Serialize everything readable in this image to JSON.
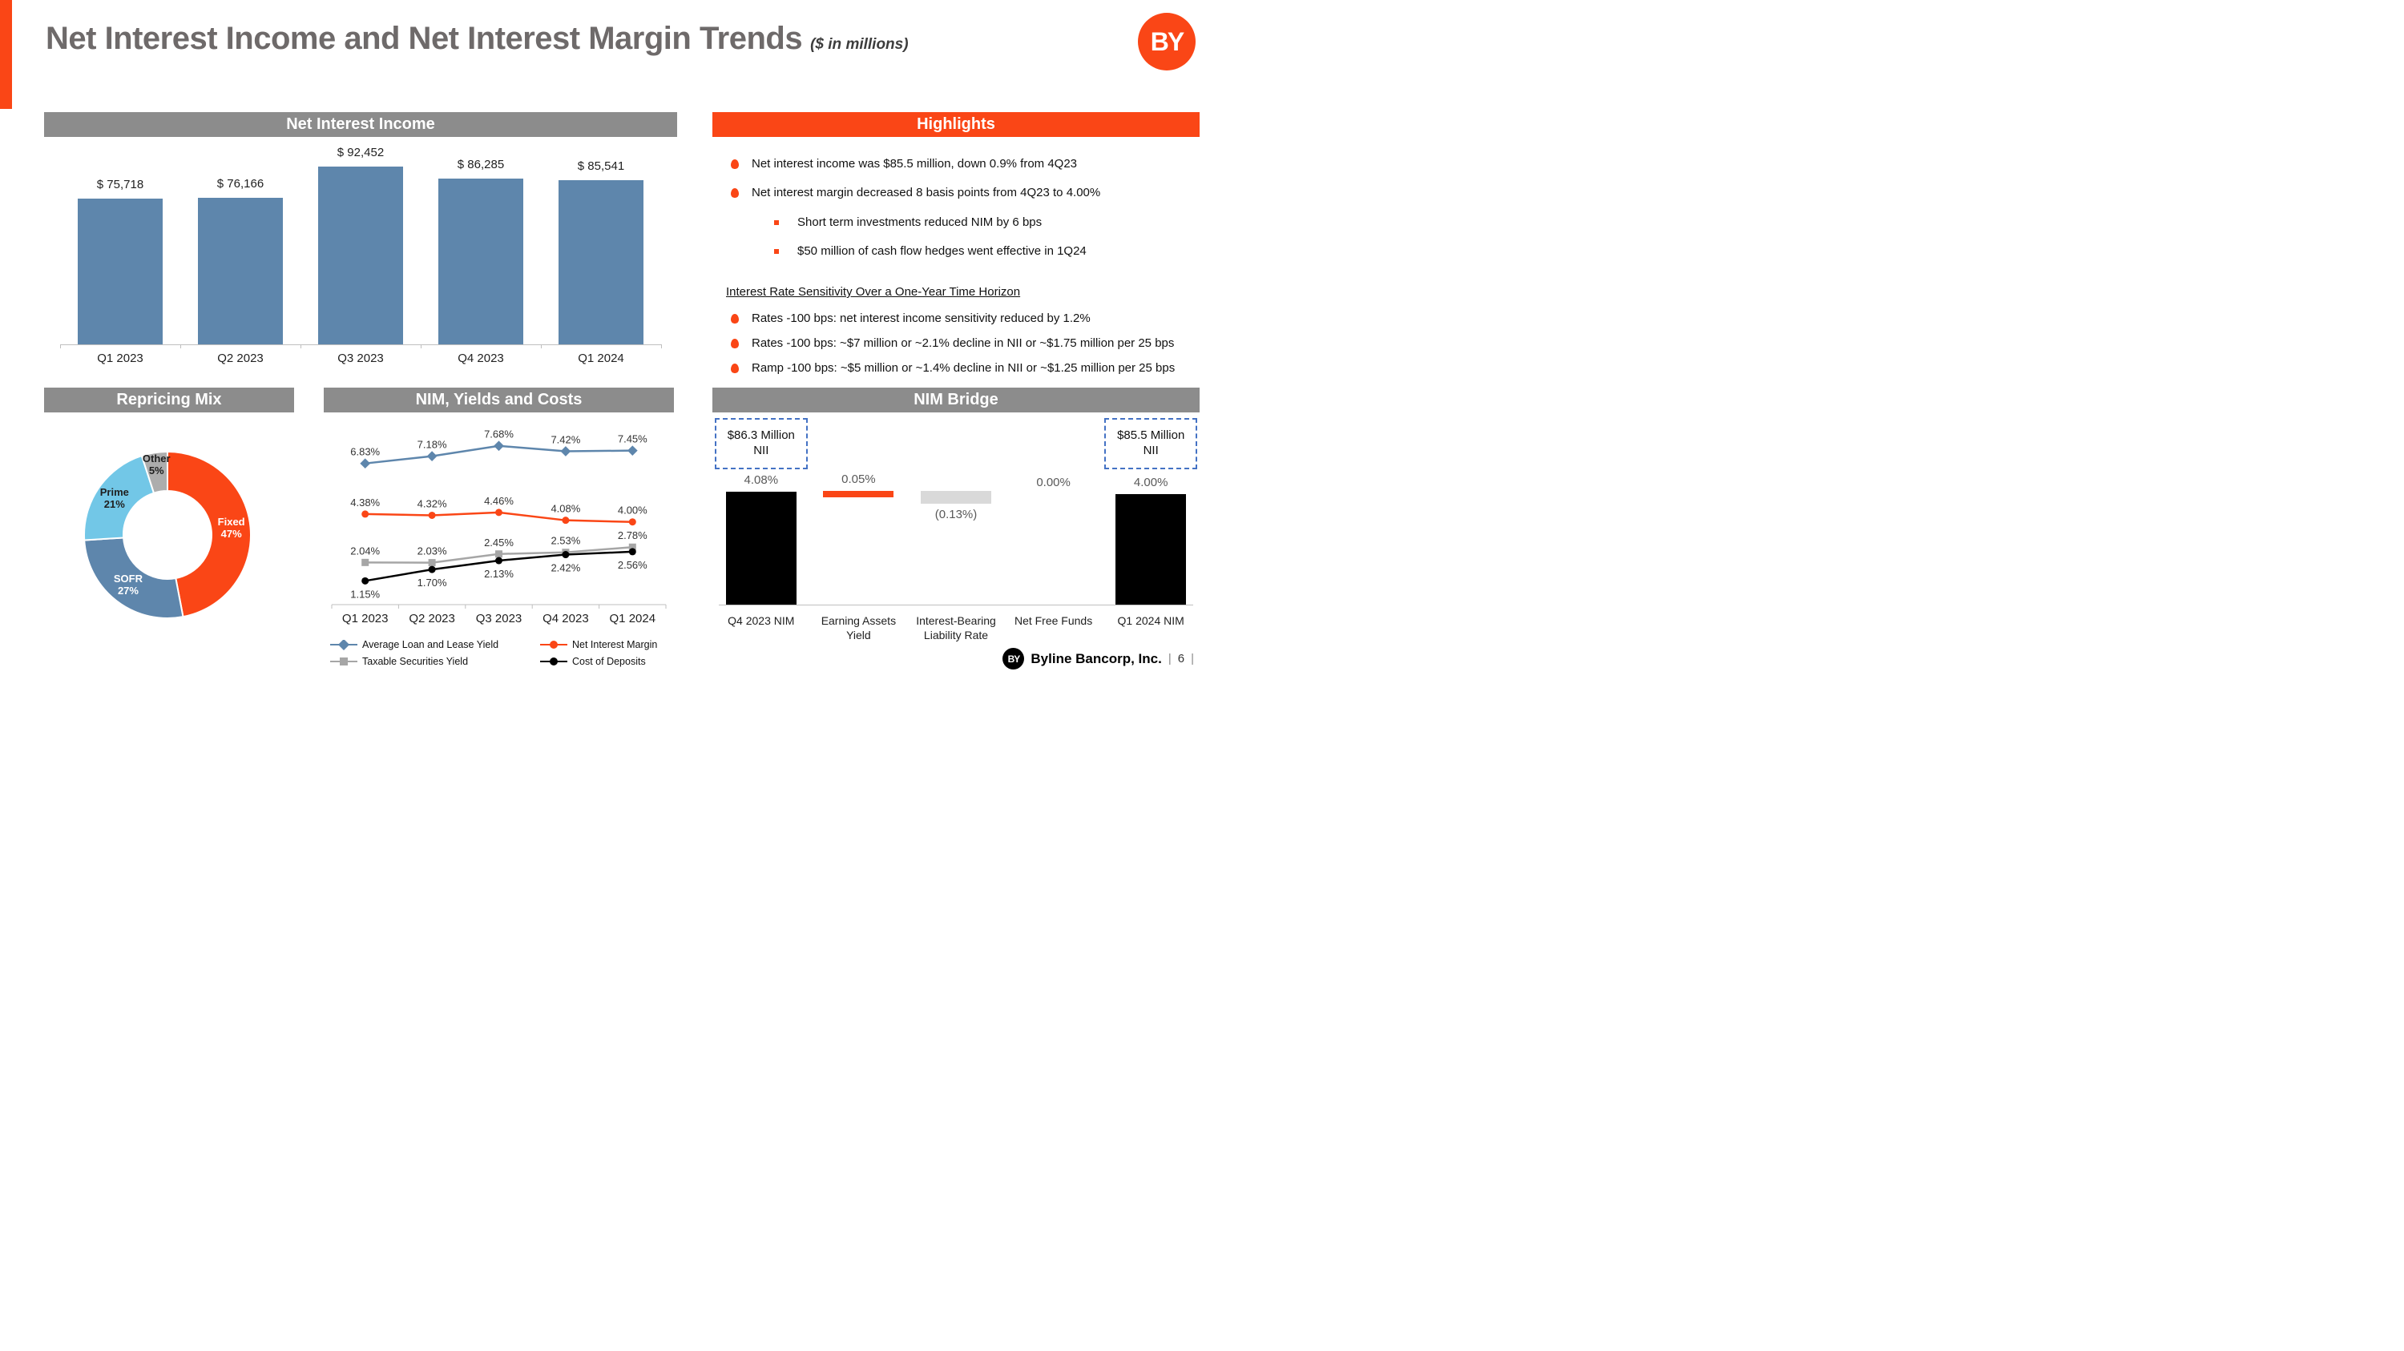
{
  "slide": {
    "title": "Net Interest Income and Net Interest Margin Trends",
    "title_suffix": "($ in millions)",
    "logo_text": "BY",
    "footer": {
      "brand": "Byline Bancorp, Inc.",
      "page_number": "6",
      "separator": "|"
    }
  },
  "colors": {
    "brand_orange": "#FA4616",
    "bar_blue": "#5E86AC",
    "light_blue": "#72C7E7",
    "header_gray": "#8C8C8C",
    "title_gray": "#6E6A6A",
    "donut_gray": "#ADADAD",
    "waterfall_gray": "#D9D9D9",
    "dashed_box_blue": "#4472C4",
    "black": "#000000"
  },
  "sections": {
    "nii": {
      "header": "Net Interest Income"
    },
    "highlights": {
      "header": "Highlights",
      "bullets_main": [
        "Net interest income was $85.5 million, down 0.9% from 4Q23",
        "Net interest margin decreased 8 basis points from 4Q23 to 4.00%"
      ],
      "bullets_sub": [
        "Short term investments reduced NIM by 6 bps",
        "$50 million of cash flow hedges went effective in 1Q24"
      ],
      "subheading": "Interest Rate Sensitivity Over a One-Year Time Horizon",
      "bullets_sensitivity": [
        "Rates -100 bps: net interest income sensitivity reduced by 1.2%",
        "Rates -100 bps: ~$7 million or ~2.1% decline in NII or ~$1.75 million per 25 bps",
        "Ramp -100 bps: ~$5 million or ~1.4% decline in NII or ~$1.25 million per 25 bps"
      ]
    },
    "repricing": {
      "header": "Repricing Mix"
    },
    "nim": {
      "header": "NIM, Yields and Costs"
    },
    "bridge": {
      "header": "NIM Bridge"
    }
  },
  "chart_data": [
    {
      "id": "net_interest_income",
      "type": "bar",
      "title": "Net Interest Income",
      "categories": [
        "Q1 2023",
        "Q2 2023",
        "Q3 2023",
        "Q4 2023",
        "Q1 2024"
      ],
      "values": [
        75718,
        76166,
        92452,
        86285,
        85541
      ],
      "labels": [
        "$ 75,718",
        "$ 76,166",
        "$ 92,452",
        "$ 86,285",
        "$ 85,541"
      ],
      "bar_color": "#5E86AC",
      "ylim": [
        0,
        100000
      ],
      "grid": false
    },
    {
      "id": "repricing_mix",
      "type": "pie",
      "title": "Repricing Mix",
      "donut": true,
      "slices": [
        {
          "label": "Fixed",
          "value": 47,
          "color": "#FA4616",
          "label_color": "#FFFFFF"
        },
        {
          "label": "SOFR",
          "value": 27,
          "color": "#5E86AC",
          "label_color": "#FFFFFF"
        },
        {
          "label": "Prime",
          "value": 21,
          "color": "#72C7E7",
          "label_color": "#1F1F1F"
        },
        {
          "label": "Other",
          "value": 5,
          "color": "#ADADAD",
          "label_color": "#1F1F1F"
        }
      ]
    },
    {
      "id": "nim_yields_costs",
      "type": "line",
      "title": "NIM, Yields and Costs",
      "categories": [
        "Q1 2023",
        "Q2 2023",
        "Q3 2023",
        "Q4 2023",
        "Q1 2024"
      ],
      "series": [
        {
          "name": "Average Loan and Lease Yield",
          "values": [
            6.83,
            7.18,
            7.68,
            7.42,
            7.45
          ],
          "color": "#5E86AC",
          "marker": "diamond",
          "label_position": "above"
        },
        {
          "name": "Net Interest Margin",
          "values": [
            4.38,
            4.32,
            4.46,
            4.08,
            4.0
          ],
          "color": "#FA4616",
          "marker": "circle",
          "label_position": "above"
        },
        {
          "name": "Taxable Securities Yield",
          "values": [
            2.04,
            2.03,
            2.45,
            2.53,
            2.78
          ],
          "color": "#A6A6A6",
          "marker": "square",
          "label_position": "above"
        },
        {
          "name": "Cost of Deposits",
          "values": [
            1.15,
            1.7,
            2.13,
            2.42,
            2.56
          ],
          "color": "#000000",
          "marker": "circle",
          "label_position": "below"
        }
      ],
      "ylim": [
        0,
        8.6
      ],
      "grid": false,
      "legend_position": "bottom"
    },
    {
      "id": "nim_bridge",
      "type": "waterfall",
      "title": "NIM Bridge",
      "categories": [
        "Q4 2023 NIM",
        "Earning Assets Yield",
        "Interest-Bearing Liability Rate",
        "Net Free Funds",
        "Q1 2024 NIM"
      ],
      "bars": [
        {
          "label": "4.08%",
          "value": 4.08,
          "kind": "total",
          "color": "#000000"
        },
        {
          "label": "0.05%",
          "value": 0.05,
          "kind": "increase",
          "color": "#FA4616"
        },
        {
          "label": "(0.13%)",
          "value": -0.13,
          "kind": "decrease",
          "color": "#D9D9D9"
        },
        {
          "label": "0.00%",
          "value": 0.0,
          "kind": "none"
        },
        {
          "label": "4.00%",
          "value": 4.0,
          "kind": "total",
          "color": "#000000"
        }
      ],
      "annotations": [
        {
          "text": "$86.3 Million NII",
          "position": "left"
        },
        {
          "text": "$85.5 Million NII",
          "position": "right"
        }
      ]
    }
  ]
}
